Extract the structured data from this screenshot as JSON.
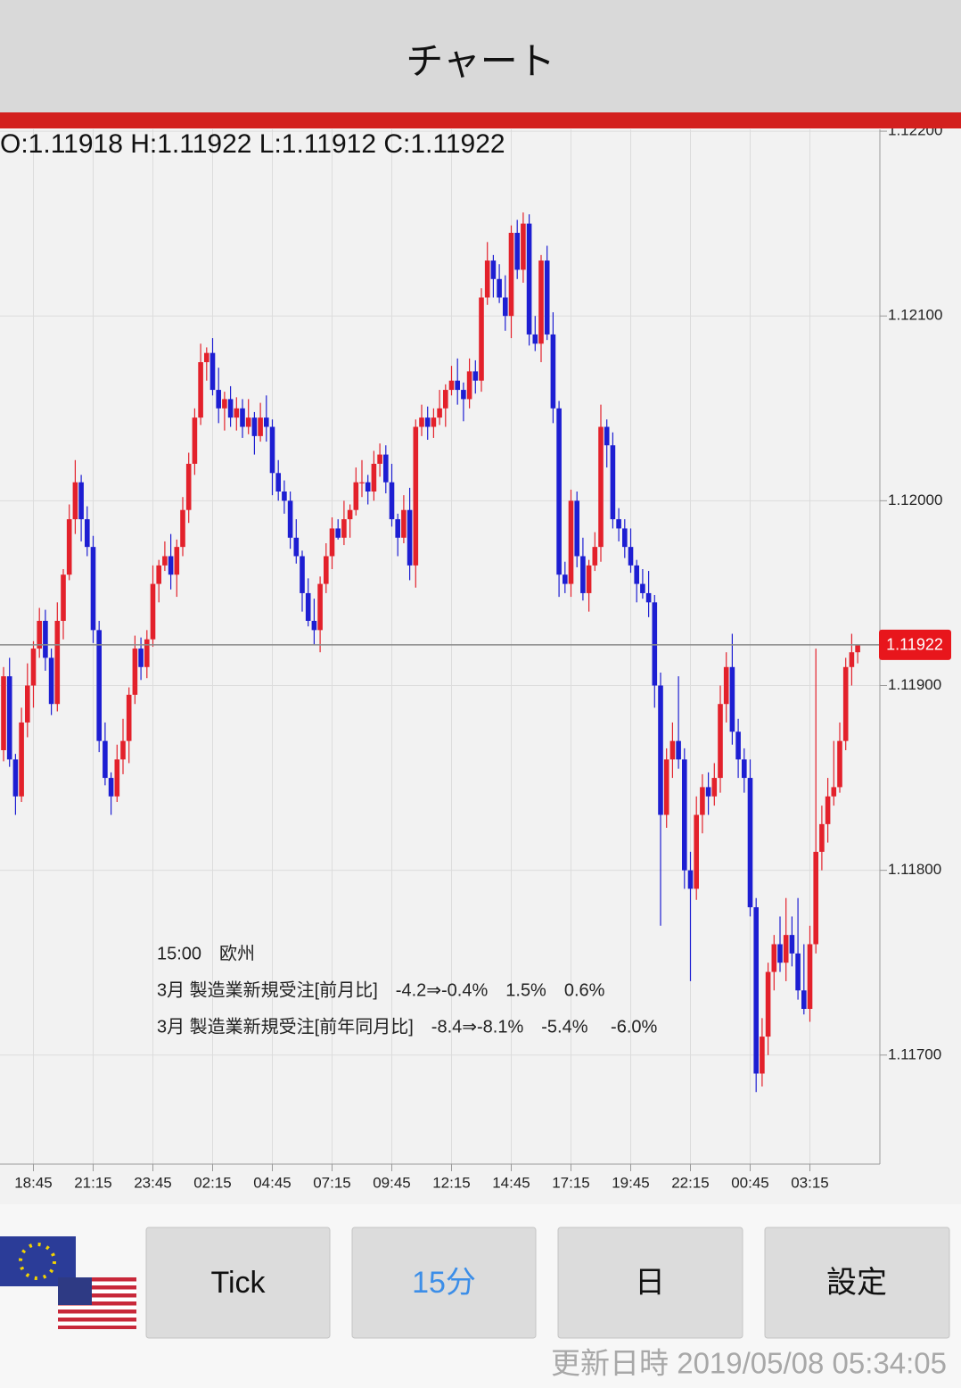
{
  "header": {
    "title": "チャート"
  },
  "chart_data": {
    "type": "candlestick",
    "ohlc_text": "O:1.11918 H:1.11922 L:1.11912 C:1.11922",
    "categories": [
      null,
      null,
      null,
      null,
      null,
      "18:45",
      null,
      null,
      null,
      null,
      null,
      null,
      null,
      null,
      null,
      "21:15",
      null,
      null,
      null,
      null,
      null,
      null,
      null,
      null,
      null,
      "23:45",
      null,
      null,
      null,
      null,
      null,
      null,
      null,
      null,
      null,
      "02:15",
      null,
      null,
      null,
      null,
      null,
      null,
      null,
      null,
      null,
      "04:45",
      null,
      null,
      null,
      null,
      null,
      null,
      null,
      null,
      null,
      "07:15",
      null,
      null,
      null,
      null,
      null,
      null,
      null,
      null,
      null,
      "09:45",
      null,
      null,
      null,
      null,
      null,
      null,
      null,
      null,
      null,
      "12:15",
      null,
      null,
      null,
      null,
      null,
      null,
      null,
      null,
      null,
      "14:45",
      null,
      null,
      null,
      null,
      null,
      null,
      null,
      null,
      null,
      "17:15",
      null,
      null,
      null,
      null,
      null,
      null,
      null,
      null,
      null,
      "19:45",
      null,
      null,
      null,
      null,
      null,
      null,
      null,
      null,
      null,
      "22:15",
      null,
      null,
      null,
      null,
      null,
      null,
      null,
      null,
      null,
      "00:45",
      null,
      null,
      null,
      null,
      null,
      null,
      null,
      null,
      null,
      "03:15",
      null,
      null,
      null,
      null,
      null,
      null,
      null,
      null
    ],
    "open": [
      1.11865,
      1.11905,
      1.1186,
      1.1184,
      1.1188,
      1.119,
      1.1192,
      1.11935,
      1.11915,
      1.1189,
      1.11935,
      1.1196,
      1.1199,
      1.1201,
      1.1199,
      1.11975,
      1.1193,
      1.1187,
      1.1185,
      1.1184,
      1.1186,
      1.1187,
      1.11895,
      1.1192,
      1.1191,
      1.11925,
      1.11955,
      1.11965,
      1.1197,
      1.1196,
      1.11975,
      1.11995,
      1.1202,
      1.12045,
      1.12075,
      1.1208,
      1.1206,
      1.1205,
      1.12055,
      1.12045,
      1.1205,
      1.1204,
      1.12045,
      1.12035,
      1.12045,
      1.1204,
      1.12015,
      1.12005,
      1.12,
      1.1198,
      1.1197,
      1.1195,
      1.11935,
      1.1193,
      1.11955,
      1.1197,
      1.11985,
      1.1198,
      1.1199,
      1.11995,
      1.1201,
      1.1201,
      1.12005,
      1.1202,
      1.12025,
      1.1201,
      1.1199,
      1.1198,
      1.11995,
      1.11965,
      1.1204,
      1.12045,
      1.1204,
      1.12045,
      1.1205,
      1.1206,
      1.12065,
      1.1206,
      1.12055,
      1.1207,
      1.12065,
      1.1211,
      1.1213,
      1.1212,
      1.1211,
      1.121,
      1.12145,
      1.12125,
      1.1215,
      1.1209,
      1.12085,
      1.1213,
      1.1209,
      1.1205,
      1.1196,
      1.11955,
      1.12,
      1.1197,
      1.1195,
      1.11965,
      1.11975,
      1.1204,
      1.1203,
      1.1199,
      1.11985,
      1.11975,
      1.11965,
      1.11955,
      1.1195,
      1.11945,
      1.119,
      1.1183,
      1.1186,
      1.1187,
      1.1186,
      1.118,
      1.1179,
      1.1183,
      1.11845,
      1.1184,
      1.1185,
      1.1189,
      1.1191,
      1.11875,
      1.1186,
      1.1185,
      1.1178,
      1.1169,
      1.1171,
      1.11745,
      1.1176,
      1.1175,
      1.11765,
      1.11755,
      1.11735,
      1.11725,
      1.1176,
      1.1181,
      1.11825,
      1.1184,
      1.11845,
      1.1187,
      1.1191,
      1.11918
    ],
    "high": [
      1.1191,
      1.11915,
      1.11863,
      1.11888,
      1.11912,
      1.11924,
      1.11942,
      1.11941,
      1.1192,
      1.11945,
      1.11963,
      1.11998,
      1.12022,
      1.12014,
      1.11997,
      1.11981,
      1.11935,
      1.1188,
      1.11853,
      1.11868,
      1.11882,
      1.11899,
      1.11927,
      1.11926,
      1.1193,
      1.11965,
      1.11968,
      1.11978,
      1.11982,
      1.11979,
      1.12002,
      1.12026,
      1.1205,
      1.12085,
      1.12083,
      1.12088,
      1.12072,
      1.12059,
      1.12062,
      1.12056,
      1.12055,
      1.12055,
      1.12048,
      1.12053,
      1.12057,
      1.12044,
      1.12022,
      1.12011,
      1.12005,
      1.1199,
      1.11973,
      1.11958,
      1.11947,
      1.11959,
      1.11977,
      1.11991,
      1.1199,
      1.12,
      1.11998,
      1.12018,
      1.12022,
      1.12014,
      1.12027,
      1.12031,
      1.1203,
      1.1202,
      1.11993,
      1.12003,
      1.12007,
      1.12044,
      1.12052,
      1.12051,
      1.1205,
      1.1206,
      1.12063,
      1.12073,
      1.12077,
      1.12064,
      1.12077,
      1.12076,
      1.12115,
      1.1214,
      1.12133,
      1.12128,
      1.12122,
      1.12149,
      1.12152,
      1.12156,
      1.12155,
      1.121,
      1.12133,
      1.12138,
      1.12102,
      1.12054,
      1.11967,
      1.12006,
      1.12005,
      1.1198,
      1.11968,
      1.11983,
      1.12052,
      1.12044,
      1.12037,
      1.11996,
      1.1199,
      1.11985,
      1.11968,
      1.11963,
      1.11962,
      1.11949,
      1.11907,
      1.11866,
      1.1188,
      1.11905,
      1.11866,
      1.1181,
      1.1184,
      1.11852,
      1.11853,
      1.11858,
      1.119,
      1.11918,
      1.11928,
      1.11882,
      1.11866,
      1.1186,
      1.11785,
      1.1172,
      1.1175,
      1.11765,
      1.11775,
      1.11785,
      1.11775,
      1.11785,
      1.1176,
      1.1177,
      1.1192,
      1.11835,
      1.1185,
      1.1187,
      1.1188,
      1.11915,
      1.11928,
      1.11922
    ],
    "low": [
      1.11859,
      1.11856,
      1.1183,
      1.11837,
      1.11872,
      1.11888,
      1.11915,
      1.11908,
      1.11884,
      1.11886,
      1.11925,
      1.11957,
      1.11982,
      1.11978,
      1.1197,
      1.11923,
      1.11864,
      1.11846,
      1.1183,
      1.11837,
      1.11852,
      1.11858,
      1.1189,
      1.11903,
      1.11904,
      1.11921,
      1.11945,
      1.11962,
      1.11952,
      1.11948,
      1.1197,
      1.11988,
      1.12014,
      1.12041,
      1.12065,
      1.12057,
      1.12042,
      1.12038,
      1.1204,
      1.12038,
      1.12034,
      1.12036,
      1.12025,
      1.12032,
      1.12032,
      1.12003,
      1.12,
      1.11993,
      1.11974,
      1.11966,
      1.1194,
      1.11932,
      1.11922,
      1.11918,
      1.1195,
      1.11963,
      1.11979,
      1.11976,
      1.1198,
      1.11992,
      1.12002,
      1.11998,
      1.12,
      1.12013,
      1.12004,
      1.11986,
      1.1197,
      1.11977,
      1.11957,
      1.11953,
      1.12035,
      1.12033,
      1.12034,
      1.12041,
      1.1204,
      1.12057,
      1.12052,
      1.12043,
      1.1205,
      1.12058,
      1.12059,
      1.12106,
      1.1211,
      1.12107,
      1.12092,
      1.12088,
      1.1212,
      1.12118,
      1.12084,
      1.12081,
      1.12075,
      1.12087,
      1.12042,
      1.11948,
      1.1195,
      1.11948,
      1.11964,
      1.11946,
      1.1194,
      1.11962,
      1.11967,
      1.12018,
      1.11985,
      1.11978,
      1.11969,
      1.11961,
      1.11945,
      1.11947,
      1.11937,
      1.11888,
      1.1177,
      1.11823,
      1.1185,
      1.11855,
      1.1179,
      1.1174,
      1.11784,
      1.1182,
      1.1183,
      1.11835,
      1.11842,
      1.1188,
      1.11868,
      1.1185,
      1.11842,
      1.11775,
      1.1168,
      1.11683,
      1.117,
      1.11735,
      1.11745,
      1.1174,
      1.11748,
      1.1173,
      1.11722,
      1.11718,
      1.11755,
      1.118,
      1.11815,
      1.11835,
      1.11842,
      1.11865,
      1.119,
      1.11912
    ],
    "close": [
      1.11905,
      1.1186,
      1.1184,
      1.1188,
      1.119,
      1.1192,
      1.11935,
      1.11915,
      1.1189,
      1.11935,
      1.1196,
      1.1199,
      1.1201,
      1.1199,
      1.11975,
      1.1193,
      1.1187,
      1.1185,
      1.1184,
      1.1186,
      1.1187,
      1.11895,
      1.1192,
      1.1191,
      1.11925,
      1.11955,
      1.11965,
      1.1197,
      1.1196,
      1.11975,
      1.11995,
      1.1202,
      1.12045,
      1.12075,
      1.1208,
      1.1206,
      1.1205,
      1.12055,
      1.12045,
      1.1205,
      1.1204,
      1.12045,
      1.12035,
      1.12045,
      1.1204,
      1.12015,
      1.12005,
      1.12,
      1.1198,
      1.1197,
      1.1195,
      1.11935,
      1.1193,
      1.11955,
      1.1197,
      1.11985,
      1.1198,
      1.1199,
      1.11995,
      1.1201,
      1.1201,
      1.12005,
      1.1202,
      1.12025,
      1.1201,
      1.1199,
      1.1198,
      1.11995,
      1.11965,
      1.1204,
      1.12045,
      1.1204,
      1.12045,
      1.1205,
      1.1206,
      1.12065,
      1.1206,
      1.12055,
      1.1207,
      1.12065,
      1.1211,
      1.1213,
      1.1212,
      1.1211,
      1.121,
      1.12145,
      1.12125,
      1.1215,
      1.1209,
      1.12085,
      1.1213,
      1.1209,
      1.1205,
      1.1196,
      1.11955,
      1.12,
      1.1197,
      1.1195,
      1.11965,
      1.11975,
      1.1204,
      1.1203,
      1.1199,
      1.11985,
      1.11975,
      1.11965,
      1.11955,
      1.1195,
      1.11945,
      1.119,
      1.1183,
      1.1186,
      1.1187,
      1.1186,
      1.118,
      1.1179,
      1.1183,
      1.11845,
      1.1184,
      1.1185,
      1.1189,
      1.1191,
      1.11875,
      1.1186,
      1.1185,
      1.1178,
      1.1169,
      1.1171,
      1.11745,
      1.1176,
      1.1175,
      1.11765,
      1.11755,
      1.11735,
      1.11725,
      1.1176,
      1.1181,
      1.11825,
      1.1184,
      1.11845,
      1.1187,
      1.1191,
      1.11918,
      1.11922
    ],
    "up_color": "#e3212b",
    "down_color": "#1d1ed2",
    "ylim": [
      1.11641,
      1.12201
    ],
    "yticks": [
      {
        "value": 1.117,
        "label": "1.11700"
      },
      {
        "value": 1.118,
        "label": "1.11800"
      },
      {
        "value": 1.119,
        "label": "1.11900"
      },
      {
        "value": 1.12,
        "label": "1.12000"
      },
      {
        "value": 1.121,
        "label": "1.12100"
      },
      {
        "value": 1.122,
        "label": "1.12200"
      }
    ],
    "grid": true,
    "current_price": 1.11922,
    "annotations": [
      "15:00　欧州",
      "3月 製造業新規受注[前月比]　-4.2⇒-0.4%　1.5%　0.6%",
      "3月 製造業新規受注[前年同月比]　-8.4⇒-8.1%　-5.4%　 -6.0%"
    ]
  },
  "buttons": [
    "Tick",
    "15分",
    "日",
    "設定"
  ],
  "footer": {
    "updated": "更新日時 2019/05/08 05:34:05"
  }
}
